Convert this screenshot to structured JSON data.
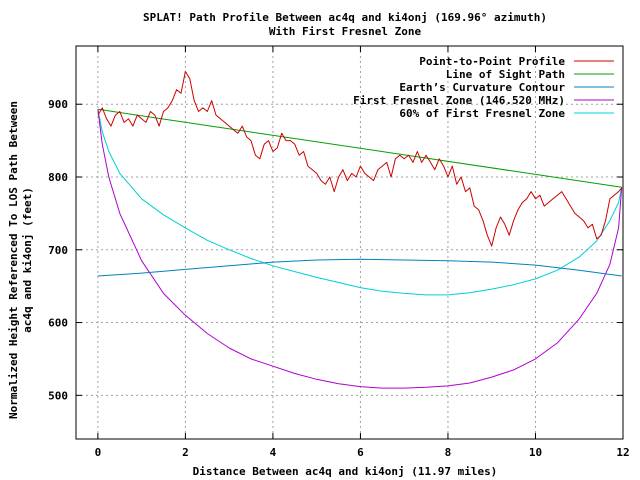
{
  "chart_data": {
    "type": "line",
    "title": "SPLAT! Path Profile Between ac4q and ki4onj (169.96° azimuth)",
    "subtitle": "With First Fresnel Zone",
    "xlabel": "Distance Between ac4q and ki4onj (11.97 miles)",
    "ylabel": "Normalized Height Referenced To LOS Path Between",
    "ylabel2": "ac4q and ki4onj (feet)",
    "xlim": [
      -0.5,
      12
    ],
    "ylim": [
      440,
      980
    ],
    "xticks": [
      0,
      2,
      4,
      6,
      8,
      10,
      12
    ],
    "yticks": [
      500,
      600,
      700,
      800,
      900
    ],
    "grid": true,
    "legend_position": "top-right",
    "series": [
      {
        "name": "Point-to-Point Profile",
        "color": "#cc0000",
        "x": [
          0,
          0.1,
          0.2,
          0.3,
          0.4,
          0.5,
          0.6,
          0.7,
          0.8,
          0.9,
          1.0,
          1.1,
          1.2,
          1.3,
          1.4,
          1.5,
          1.6,
          1.7,
          1.8,
          1.9,
          2.0,
          2.1,
          2.2,
          2.3,
          2.4,
          2.5,
          2.6,
          2.7,
          2.8,
          2.9,
          3.0,
          3.1,
          3.2,
          3.3,
          3.4,
          3.5,
          3.6,
          3.7,
          3.8,
          3.9,
          4.0,
          4.1,
          4.2,
          4.3,
          4.4,
          4.5,
          4.6,
          4.7,
          4.8,
          4.9,
          5.0,
          5.1,
          5.2,
          5.3,
          5.4,
          5.5,
          5.6,
          5.7,
          5.8,
          5.9,
          6.0,
          6.1,
          6.2,
          6.3,
          6.4,
          6.5,
          6.6,
          6.7,
          6.8,
          6.9,
          7.0,
          7.1,
          7.2,
          7.3,
          7.4,
          7.5,
          7.6,
          7.7,
          7.8,
          7.9,
          8.0,
          8.1,
          8.2,
          8.3,
          8.4,
          8.5,
          8.6,
          8.7,
          8.8,
          8.9,
          9.0,
          9.1,
          9.2,
          9.3,
          9.4,
          9.5,
          9.6,
          9.7,
          9.8,
          9.9,
          10.0,
          10.1,
          10.2,
          10.3,
          10.4,
          10.5,
          10.6,
          10.7,
          10.8,
          10.9,
          11.0,
          11.1,
          11.2,
          11.3,
          11.4,
          11.5,
          11.6,
          11.7,
          11.8,
          11.9,
          11.97
        ],
        "values": [
          885,
          895,
          880,
          870,
          885,
          890,
          875,
          880,
          870,
          885,
          880,
          875,
          890,
          885,
          870,
          890,
          895,
          905,
          920,
          915,
          945,
          935,
          905,
          890,
          895,
          890,
          905,
          885,
          880,
          875,
          870,
          865,
          860,
          870,
          855,
          850,
          830,
          825,
          845,
          850,
          835,
          840,
          860,
          850,
          850,
          845,
          830,
          835,
          815,
          810,
          805,
          795,
          790,
          800,
          780,
          800,
          810,
          795,
          805,
          800,
          815,
          805,
          800,
          795,
          810,
          815,
          820,
          800,
          825,
          830,
          825,
          830,
          820,
          835,
          820,
          830,
          820,
          810,
          825,
          815,
          800,
          815,
          790,
          800,
          780,
          785,
          760,
          755,
          740,
          720,
          705,
          730,
          745,
          735,
          720,
          740,
          755,
          765,
          770,
          780,
          770,
          775,
          760,
          765,
          770,
          775,
          780,
          770,
          760,
          750,
          745,
          740,
          730,
          735,
          715,
          720,
          740,
          770,
          775,
          780,
          785
        ]
      },
      {
        "name": "Line of Sight Path",
        "color": "#00a000",
        "x": [
          0,
          11.97
        ],
        "values": [
          893,
          786
        ]
      },
      {
        "name": "Earth’s Curvature Contour",
        "color": "#0080c0",
        "x": [
          0,
          1,
          2,
          3,
          4,
          5,
          6,
          7,
          8,
          9,
          10,
          11,
          11.97
        ],
        "values": [
          664,
          668,
          673,
          678,
          683,
          686,
          687,
          686,
          685,
          683,
          679,
          672,
          664
        ]
      },
      {
        "name": "First Fresnel Zone (146.520 MHz)",
        "color": "#b000d0",
        "x": [
          0,
          0.1,
          0.25,
          0.5,
          1,
          1.5,
          2,
          2.5,
          3,
          3.5,
          4,
          4.5,
          5,
          5.5,
          6,
          6.5,
          7,
          7.5,
          8,
          8.5,
          9,
          9.5,
          10,
          10.5,
          11,
          11.4,
          11.7,
          11.9,
          11.97
        ],
        "values": [
          893,
          845,
          800,
          750,
          685,
          640,
          610,
          585,
          565,
          550,
          540,
          530,
          522,
          516,
          512,
          510,
          510,
          511,
          513,
          517,
          525,
          535,
          550,
          572,
          605,
          640,
          680,
          730,
          786
        ]
      },
      {
        "name": "60% of First Fresnel Zone",
        "color": "#00d0d0",
        "x": [
          0,
          0.1,
          0.25,
          0.5,
          1,
          1.5,
          2,
          2.5,
          3,
          3.5,
          4,
          4.5,
          5,
          5.5,
          6,
          6.5,
          7,
          7.5,
          8,
          8.5,
          9,
          9.5,
          10,
          10.5,
          11,
          11.4,
          11.7,
          11.9,
          11.97
        ],
        "values": [
          893,
          862,
          835,
          805,
          770,
          748,
          730,
          713,
          700,
          688,
          678,
          670,
          662,
          655,
          648,
          643,
          640,
          638,
          638,
          641,
          646,
          652,
          660,
          672,
          690,
          712,
          740,
          765,
          786
        ]
      }
    ]
  }
}
